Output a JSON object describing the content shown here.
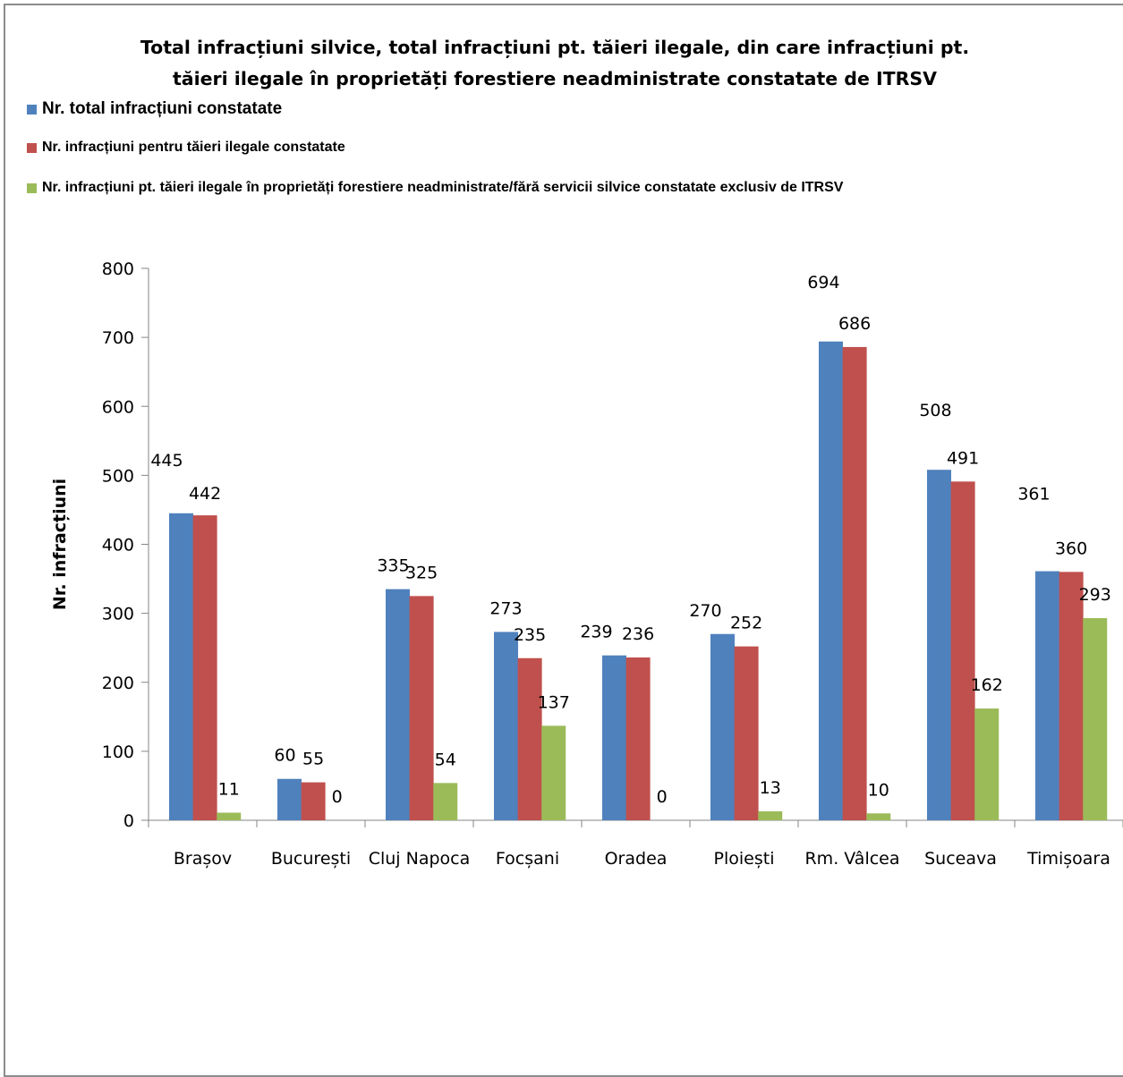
{
  "chart_data": {
    "type": "bar",
    "title": "Total  infracțiuni silvice, total infracțiuni pt. tăieri ilegale, din care infracțiuni  pt. tăieri ilegale în proprietăți forestiere neadministrate constatate de ITRSV",
    "title_lines": [
      "Total  infracțiuni silvice, total infracțiuni pt. tăieri ilegale, din care infracțiuni  pt.",
      "tăieri ilegale în proprietăți forestiere neadministrate constatate de ITRSV"
    ],
    "ylabel": "Nr. infracțiuni",
    "xlabel": "",
    "ylim": [
      0,
      800
    ],
    "yticks": [
      "0",
      "100",
      "200",
      "300",
      "400",
      "500",
      "600",
      "700",
      "800"
    ],
    "categories": [
      "Brașov",
      "București",
      "Cluj Napoca",
      "Focșani",
      "Oradea",
      "Ploiești",
      "Rm. Vâlcea",
      "Suceava",
      "Timișoara"
    ],
    "series": [
      {
        "name": "Nr. total infracțiuni constatate",
        "color": "#4f81bd",
        "values": [
          445,
          60,
          335,
          273,
          239,
          270,
          694,
          508,
          361
        ]
      },
      {
        "name": "Nr. infracțiuni pentru tăieri ilegale constatate",
        "color": "#c0504d",
        "values": [
          442,
          55,
          325,
          235,
          236,
          252,
          686,
          491,
          360
        ]
      },
      {
        "name": "Nr. infracțiuni pt. tăieri ilegale  în proprietăți forestiere neadministrate/fără servicii silvice constatate exclusiv de ITRSV",
        "color": "#9bbb59",
        "values": [
          11,
          0,
          54,
          137,
          0,
          13,
          10,
          162,
          293
        ]
      }
    ],
    "legend_position": "top-left",
    "grid": false
  }
}
